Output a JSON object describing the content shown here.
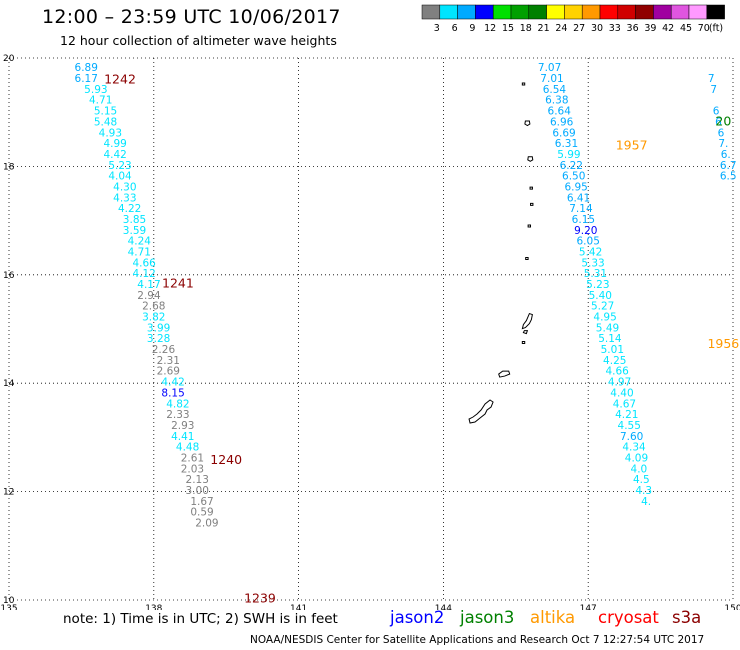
{
  "header": {
    "title": "12:00 – 23:59 UTC 10/06/2017",
    "subtitle": "12 hour collection of altimeter wave heights"
  },
  "legend": {
    "unit": "(ft)",
    "bins": [
      {
        "label": "3",
        "color": "#808080"
      },
      {
        "label": "6",
        "color": "#00e5ff"
      },
      {
        "label": "9",
        "color": "#00aaff"
      },
      {
        "label": "12",
        "color": "#0000ff"
      },
      {
        "label": "15",
        "color": "#00e000"
      },
      {
        "label": "18",
        "color": "#00a000"
      },
      {
        "label": "21",
        "color": "#008000"
      },
      {
        "label": "24",
        "color": "#ffff00"
      },
      {
        "label": "27",
        "color": "#ffd200"
      },
      {
        "label": "30",
        "color": "#ff9900"
      },
      {
        "label": "33",
        "color": "#ff0000"
      },
      {
        "label": "36",
        "color": "#d00000"
      },
      {
        "label": "39",
        "color": "#900000"
      },
      {
        "label": "42",
        "color": "#a000a0"
      },
      {
        "label": "45",
        "color": "#e055e0"
      },
      {
        "label": "70",
        "color": "#ff99ff"
      },
      {
        "label": "",
        "color": "#000000"
      }
    ]
  },
  "chart_data": {
    "type": "scatter",
    "x_ticks": [
      "135",
      "138",
      "141",
      "144",
      "147",
      "150"
    ],
    "y_ticks": [
      "10",
      "12",
      "14",
      "16",
      "18",
      "20"
    ],
    "xlim": [
      135,
      150
    ],
    "ylim": [
      10,
      20
    ],
    "grid": true,
    "times": [
      {
        "label": "1242",
        "lon": 137.3,
        "lat": 19.62,
        "color": "#8b0000"
      },
      {
        "label": "1241",
        "lon": 138.5,
        "lat": 15.86,
        "color": "#8b0000"
      },
      {
        "label": "1240",
        "lon": 139.5,
        "lat": 12.6,
        "color": "#8b0000"
      },
      {
        "label": "1239",
        "lon": 140.2,
        "lat": 10.05,
        "color": "#8b0000"
      },
      {
        "label": "1957",
        "lon": 147.9,
        "lat": 18.4,
        "color": "#ff9900"
      },
      {
        "label": "1956",
        "lon": 149.8,
        "lat": 14.74,
        "color": "#ff9900"
      },
      {
        "label": "20",
        "lon": 149.8,
        "lat": 18.85,
        "color": "#008000"
      }
    ],
    "tracks": [
      {
        "name": "track-west",
        "points": [
          {
            "lon": 136.6,
            "lat": 19.83,
            "v": "6.89",
            "color": "#00aaff"
          },
          {
            "lon": 136.6,
            "lat": 19.63,
            "v": "6.17",
            "color": "#00aaff"
          },
          {
            "lon": 136.8,
            "lat": 19.43,
            "v": "5.93",
            "color": "#00e5ff"
          },
          {
            "lon": 136.9,
            "lat": 19.23,
            "v": "4.71",
            "color": "#00e5ff"
          },
          {
            "lon": 137.0,
            "lat": 19.03,
            "v": "5.15",
            "color": "#00e5ff"
          },
          {
            "lon": 137.0,
            "lat": 18.83,
            "v": "5.48",
            "color": "#00e5ff"
          },
          {
            "lon": 137.1,
            "lat": 18.63,
            "v": "4.93",
            "color": "#00e5ff"
          },
          {
            "lon": 137.2,
            "lat": 18.43,
            "v": "4.99",
            "color": "#00e5ff"
          },
          {
            "lon": 137.2,
            "lat": 18.23,
            "v": "4.42",
            "color": "#00e5ff"
          },
          {
            "lon": 137.3,
            "lat": 18.03,
            "v": "5.23",
            "color": "#00e5ff"
          },
          {
            "lon": 137.3,
            "lat": 17.83,
            "v": "4.04",
            "color": "#00e5ff"
          },
          {
            "lon": 137.4,
            "lat": 17.63,
            "v": "4.30",
            "color": "#00e5ff"
          },
          {
            "lon": 137.4,
            "lat": 17.43,
            "v": "4.33",
            "color": "#00e5ff"
          },
          {
            "lon": 137.5,
            "lat": 17.23,
            "v": "4.22",
            "color": "#00e5ff"
          },
          {
            "lon": 137.6,
            "lat": 17.03,
            "v": "3.85",
            "color": "#00e5ff"
          },
          {
            "lon": 137.6,
            "lat": 16.83,
            "v": "3.59",
            "color": "#00e5ff"
          },
          {
            "lon": 137.7,
            "lat": 16.63,
            "v": "4.24",
            "color": "#00e5ff"
          },
          {
            "lon": 137.7,
            "lat": 16.43,
            "v": "4.71",
            "color": "#00e5ff"
          },
          {
            "lon": 137.8,
            "lat": 16.23,
            "v": "4.66",
            "color": "#00e5ff"
          },
          {
            "lon": 137.8,
            "lat": 16.03,
            "v": "4.12",
            "color": "#00e5ff"
          },
          {
            "lon": 137.9,
            "lat": 15.83,
            "v": "4.17",
            "color": "#00e5ff"
          },
          {
            "lon": 137.9,
            "lat": 15.63,
            "v": "2.94",
            "color": "#808080"
          },
          {
            "lon": 138.0,
            "lat": 15.43,
            "v": "2.68",
            "color": "#808080"
          },
          {
            "lon": 138.0,
            "lat": 15.23,
            "v": "3.82",
            "color": "#00e5ff"
          },
          {
            "lon": 138.1,
            "lat": 15.03,
            "v": "3.99",
            "color": "#00e5ff"
          },
          {
            "lon": 138.1,
            "lat": 14.83,
            "v": "3.28",
            "color": "#00e5ff"
          },
          {
            "lon": 138.2,
            "lat": 14.63,
            "v": "2.26",
            "color": "#808080"
          },
          {
            "lon": 138.3,
            "lat": 14.43,
            "v": "2.31",
            "color": "#808080"
          },
          {
            "lon": 138.3,
            "lat": 14.23,
            "v": "2.69",
            "color": "#808080"
          },
          {
            "lon": 138.4,
            "lat": 14.03,
            "v": "4.42",
            "color": "#00e5ff"
          },
          {
            "lon": 138.4,
            "lat": 13.83,
            "v": "8.15",
            "color": "#0000ff"
          },
          {
            "lon": 138.5,
            "lat": 13.63,
            "v": "4.82",
            "color": "#00e5ff"
          },
          {
            "lon": 138.5,
            "lat": 13.43,
            "v": "2.33",
            "color": "#808080"
          },
          {
            "lon": 138.6,
            "lat": 13.23,
            "v": "2.93",
            "color": "#808080"
          },
          {
            "lon": 138.6,
            "lat": 13.03,
            "v": "4.41",
            "color": "#00e5ff"
          },
          {
            "lon": 138.7,
            "lat": 12.83,
            "v": "4.48",
            "color": "#00e5ff"
          },
          {
            "lon": 138.8,
            "lat": 12.63,
            "v": "2.61",
            "color": "#808080"
          },
          {
            "lon": 138.8,
            "lat": 12.43,
            "v": "2.03",
            "color": "#808080"
          },
          {
            "lon": 138.9,
            "lat": 12.23,
            "v": "2.13",
            "color": "#808080"
          },
          {
            "lon": 138.9,
            "lat": 12.03,
            "v": "3.00",
            "color": "#808080"
          },
          {
            "lon": 139.0,
            "lat": 11.83,
            "v": "1.67",
            "color": "#808080"
          },
          {
            "lon": 139.0,
            "lat": 11.63,
            "v": "0.59",
            "color": "#808080"
          },
          {
            "lon": 139.1,
            "lat": 11.43,
            "v": "2.09",
            "color": "#808080"
          }
        ]
      },
      {
        "name": "track-east",
        "points": [
          {
            "lon": 146.2,
            "lat": 19.83,
            "v": "7.07",
            "color": "#00aaff"
          },
          {
            "lon": 146.25,
            "lat": 19.63,
            "v": "7.01",
            "color": "#00aaff"
          },
          {
            "lon": 146.3,
            "lat": 19.43,
            "v": "6.54",
            "color": "#00aaff"
          },
          {
            "lon": 146.35,
            "lat": 19.23,
            "v": "6.38",
            "color": "#00aaff"
          },
          {
            "lon": 146.4,
            "lat": 19.03,
            "v": "6.64",
            "color": "#00aaff"
          },
          {
            "lon": 146.45,
            "lat": 18.83,
            "v": "6.96",
            "color": "#00aaff"
          },
          {
            "lon": 146.5,
            "lat": 18.63,
            "v": "6.69",
            "color": "#00aaff"
          },
          {
            "lon": 146.55,
            "lat": 18.43,
            "v": "6.31",
            "color": "#00aaff"
          },
          {
            "lon": 146.6,
            "lat": 18.23,
            "v": "5.99",
            "color": "#00e5ff"
          },
          {
            "lon": 146.65,
            "lat": 18.03,
            "v": "6.22",
            "color": "#00aaff"
          },
          {
            "lon": 146.7,
            "lat": 17.83,
            "v": "6.50",
            "color": "#00aaff"
          },
          {
            "lon": 146.75,
            "lat": 17.63,
            "v": "6.95",
            "color": "#00aaff"
          },
          {
            "lon": 146.8,
            "lat": 17.43,
            "v": "6.41",
            "color": "#00aaff"
          },
          {
            "lon": 146.85,
            "lat": 17.23,
            "v": "7.14",
            "color": "#00aaff"
          },
          {
            "lon": 146.9,
            "lat": 17.03,
            "v": "6.15",
            "color": "#00aaff"
          },
          {
            "lon": 146.95,
            "lat": 16.83,
            "v": "9.20",
            "color": "#0000ff"
          },
          {
            "lon": 147.0,
            "lat": 16.63,
            "v": "6.05",
            "color": "#00aaff"
          },
          {
            "lon": 147.05,
            "lat": 16.43,
            "v": "5.42",
            "color": "#00e5ff"
          },
          {
            "lon": 147.1,
            "lat": 16.23,
            "v": "5.33",
            "color": "#00e5ff"
          },
          {
            "lon": 147.15,
            "lat": 16.03,
            "v": "5.31",
            "color": "#00e5ff"
          },
          {
            "lon": 147.2,
            "lat": 15.83,
            "v": "5.23",
            "color": "#00e5ff"
          },
          {
            "lon": 147.25,
            "lat": 15.63,
            "v": "5.40",
            "color": "#00e5ff"
          },
          {
            "lon": 147.3,
            "lat": 15.43,
            "v": "5.27",
            "color": "#00e5ff"
          },
          {
            "lon": 147.35,
            "lat": 15.23,
            "v": "4.95",
            "color": "#00e5ff"
          },
          {
            "lon": 147.4,
            "lat": 15.03,
            "v": "5.49",
            "color": "#00e5ff"
          },
          {
            "lon": 147.45,
            "lat": 14.83,
            "v": "5.14",
            "color": "#00e5ff"
          },
          {
            "lon": 147.5,
            "lat": 14.63,
            "v": "5.01",
            "color": "#00e5ff"
          },
          {
            "lon": 147.55,
            "lat": 14.43,
            "v": "4.25",
            "color": "#00e5ff"
          },
          {
            "lon": 147.6,
            "lat": 14.23,
            "v": "4.66",
            "color": "#00e5ff"
          },
          {
            "lon": 147.65,
            "lat": 14.03,
            "v": "4.97",
            "color": "#00e5ff"
          },
          {
            "lon": 147.7,
            "lat": 13.83,
            "v": "4.40",
            "color": "#00e5ff"
          },
          {
            "lon": 147.75,
            "lat": 13.63,
            "v": "4.67",
            "color": "#00e5ff"
          },
          {
            "lon": 147.8,
            "lat": 13.43,
            "v": "4.21",
            "color": "#00e5ff"
          },
          {
            "lon": 147.85,
            "lat": 13.23,
            "v": "4.55",
            "color": "#00e5ff"
          },
          {
            "lon": 147.9,
            "lat": 13.03,
            "v": "7.60",
            "color": "#00aaff"
          },
          {
            "lon": 147.95,
            "lat": 12.83,
            "v": "4.34",
            "color": "#00e5ff"
          },
          {
            "lon": 148.0,
            "lat": 12.63,
            "v": "4.09",
            "color": "#00e5ff"
          },
          {
            "lon": 148.05,
            "lat": 12.43,
            "v": "4.0",
            "color": "#00e5ff"
          },
          {
            "lon": 148.1,
            "lat": 12.23,
            "v": "4.5",
            "color": "#00e5ff"
          },
          {
            "lon": 148.15,
            "lat": 12.03,
            "v": "4.3",
            "color": "#00e5ff"
          },
          {
            "lon": 148.2,
            "lat": 11.83,
            "v": "4.",
            "color": "#00e5ff"
          }
        ]
      },
      {
        "name": "track-far-east",
        "points": [
          {
            "lon": 149.55,
            "lat": 19.63,
            "v": "7",
            "color": "#00aaff"
          },
          {
            "lon": 149.6,
            "lat": 19.43,
            "v": "7",
            "color": "#00aaff"
          },
          {
            "lon": 149.65,
            "lat": 19.03,
            "v": "6",
            "color": "#00aaff"
          },
          {
            "lon": 149.7,
            "lat": 18.83,
            "v": "6",
            "color": "#00aaff"
          },
          {
            "lon": 149.75,
            "lat": 18.63,
            "v": "6",
            "color": "#00aaff"
          },
          {
            "lon": 149.8,
            "lat": 18.43,
            "v": "7.",
            "color": "#00aaff"
          },
          {
            "lon": 149.85,
            "lat": 18.23,
            "v": "6.",
            "color": "#00aaff"
          },
          {
            "lon": 149.9,
            "lat": 18.03,
            "v": "6.7",
            "color": "#00aaff"
          },
          {
            "lon": 149.9,
            "lat": 17.83,
            "v": "6.5",
            "color": "#00aaff"
          }
        ]
      }
    ],
    "islands": [
      {
        "lon": 145.66,
        "lat": 19.52,
        "shape": "dot"
      },
      {
        "lon": 145.74,
        "lat": 18.8,
        "shape": "small"
      },
      {
        "lon": 145.8,
        "lat": 18.14,
        "shape": "small"
      },
      {
        "lon": 145.82,
        "lat": 17.6,
        "shape": "dot"
      },
      {
        "lon": 145.83,
        "lat": 17.3,
        "shape": "dot"
      },
      {
        "lon": 145.78,
        "lat": 16.9,
        "shape": "dot"
      },
      {
        "lon": 145.73,
        "lat": 16.3,
        "shape": "dot"
      },
      {
        "lon": 145.74,
        "lat": 15.1,
        "shape": "saipan"
      },
      {
        "lon": 145.66,
        "lat": 14.75,
        "shape": "dot"
      },
      {
        "lon": 145.27,
        "lat": 14.15,
        "shape": "rota"
      },
      {
        "lon": 144.78,
        "lat": 13.45,
        "shape": "guam"
      }
    ]
  },
  "note": "note: 1) Time is in UTC; 2) SWH is in feet",
  "missions": [
    {
      "name": "jason2",
      "color": "#0000ff"
    },
    {
      "name": "jason3",
      "color": "#008000"
    },
    {
      "name": "altika",
      "color": "#ff9900"
    },
    {
      "name": "cryosat",
      "color": "#ff0000"
    },
    {
      "name": "s3a",
      "color": "#8b0000"
    }
  ],
  "footer": "NOAA/NESDIS Center for Satellite Applications and Research   Oct  7 12:27:54 UTC 2017"
}
